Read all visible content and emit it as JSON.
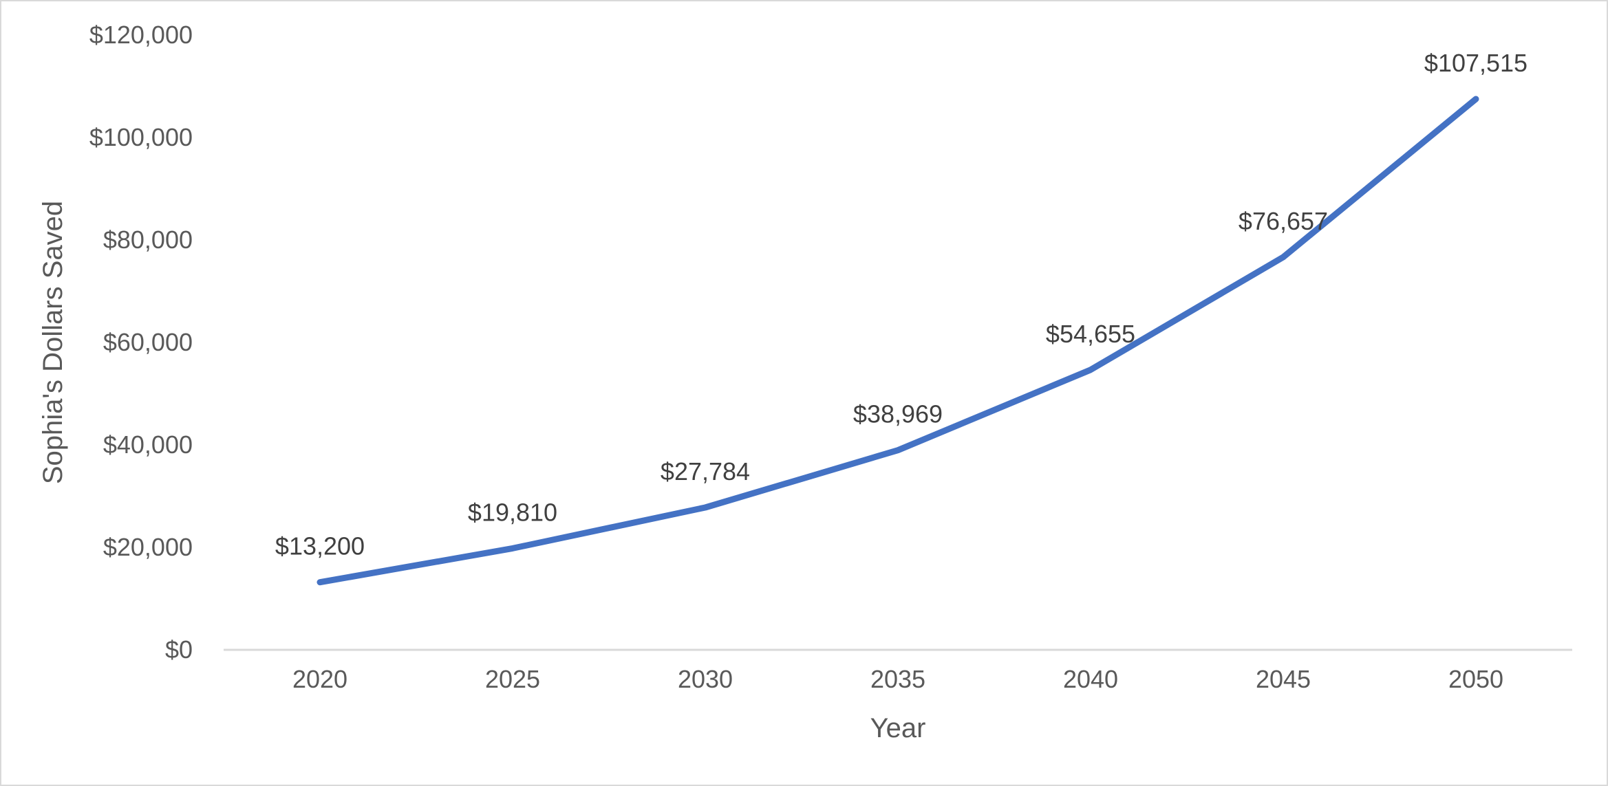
{
  "chart_data": {
    "type": "line",
    "title": "",
    "xlabel": "Year",
    "ylabel": "Sophia's Dollars Saved",
    "categories": [
      "2020",
      "2025",
      "2030",
      "2035",
      "2040",
      "2045",
      "2050"
    ],
    "series": [
      {
        "values": [
          13200,
          19810,
          27784,
          38969,
          54655,
          76657,
          107515
        ],
        "data_labels": [
          "$13,200",
          "$19,810",
          "$27,784",
          "$38,969",
          "$54,655",
          "$76,657",
          "$107,515"
        ],
        "color": "#4472c4"
      }
    ],
    "ylim": [
      0,
      120000
    ],
    "y_ticks": [
      0,
      20000,
      40000,
      60000,
      80000,
      100000,
      120000
    ],
    "y_tick_labels": [
      "$0",
      "$20,000",
      "$40,000",
      "$60,000",
      "$80,000",
      "$100,000",
      "$120,000"
    ],
    "grid": false,
    "legend": "none",
    "colors": {
      "line": "#4472c4",
      "axis": "#d9d9d9",
      "tick_text": "#595959",
      "label_text": "#404040"
    }
  }
}
